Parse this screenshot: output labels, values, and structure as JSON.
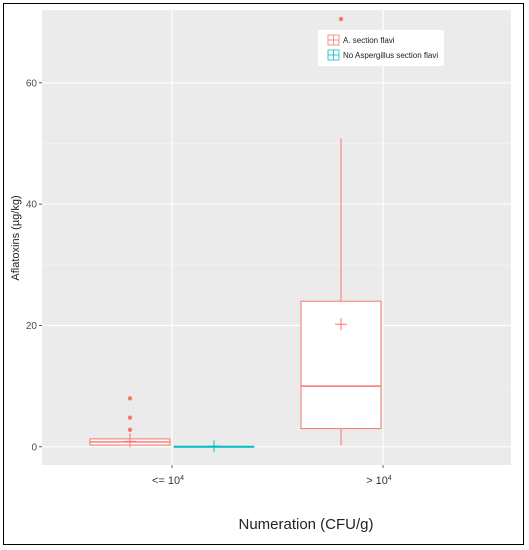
{
  "chart_data": {
    "type": "boxplot",
    "xlabel": "Numeration (CFU/g)",
    "ylabel": "Aflatoxins (µg/kg)",
    "ylim": [
      -3,
      72
    ],
    "yticks": [
      0,
      20,
      40,
      60
    ],
    "categories": [
      {
        "base": "<= 10",
        "exp": "4"
      },
      {
        "base": "> 10",
        "exp": "4"
      }
    ],
    "series": [
      {
        "name": "A. section flavi",
        "color": "#F8766D",
        "boxes": [
          {
            "category": 0,
            "min": 0,
            "q1": 0.3,
            "median": 0.8,
            "q3": 1.3,
            "max": 2.2,
            "mean": 0.9,
            "outliers": [
              2.8,
              4.8,
              8.0
            ]
          },
          {
            "category": 1,
            "min": 0.3,
            "q1": 3.0,
            "median": 10.0,
            "q3": 24.0,
            "max": 50.8,
            "mean": 20.2,
            "outliers": [
              70.5
            ]
          }
        ]
      },
      {
        "name": "No Aspergillus section flavi",
        "color": "#00BFC4",
        "boxes": [
          {
            "category": 0,
            "min": 0,
            "q1": 0,
            "median": 0,
            "q3": 0,
            "max": 0,
            "mean": 0.1,
            "outliers": []
          }
        ]
      }
    ],
    "legend": "top-right",
    "grid": true
  }
}
